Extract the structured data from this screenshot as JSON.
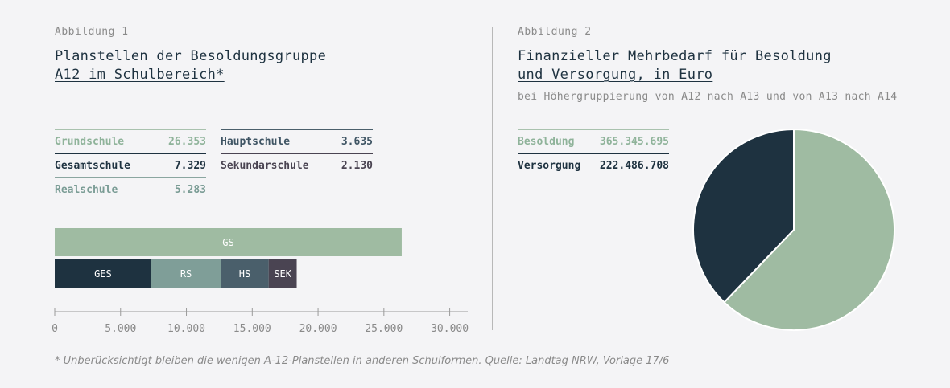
{
  "fig1": {
    "label": "Abbildung 1",
    "title_line1": "Planstellen der Besoldungsgruppe",
    "title_line2": "A12 im Schulbereich*",
    "legend_left": [
      {
        "label": "Grundschule",
        "value": "26.353",
        "color": "#8fb39a"
      },
      {
        "label": "Gesamtschule",
        "value": "7.329",
        "color": "#1e3240"
      },
      {
        "label": "Realschule",
        "value": "5.283",
        "color": "#7a9c95"
      }
    ],
    "legend_right": [
      {
        "label": "Hauptschule",
        "value": "3.635",
        "color": "#3f5564"
      },
      {
        "label": "Sekundarschule",
        "value": "2.130",
        "color": "#4a4452"
      }
    ]
  },
  "fig2": {
    "label": "Abbildung 2",
    "title_line1": "Finanzieller Mehrbedarf für Besoldung",
    "title_line2": "und Versorgung, in Euro",
    "subtitle": "bei Höhergruppierung von A12 nach A13 und von A13 nach A14",
    "legend": [
      {
        "label": "Besoldung",
        "value": "365.345.695",
        "color": "#8fb39a"
      },
      {
        "label": "Versorgung",
        "value": "222.486.708",
        "color": "#1e3240"
      }
    ]
  },
  "footnote": "* Unberücksichtigt bleiben die wenigen A-12-Planstellen in anderen Schulformen. Quelle: Landtag NRW, Vorlage 17/6",
  "chart_data": [
    {
      "type": "bar",
      "orientation": "horizontal",
      "stacked": true,
      "rows": [
        {
          "segments": [
            {
              "label": "GS",
              "value": 26353,
              "color": "#9fbba2"
            }
          ]
        },
        {
          "segments": [
            {
              "label": "GES",
              "value": 7329,
              "color": "#1e3240"
            },
            {
              "label": "RS",
              "value": 5283,
              "color": "#7f9e98"
            },
            {
              "label": "HS",
              "value": 3635,
              "color": "#4a5f6b"
            },
            {
              "label": "SEK",
              "value": 2130,
              "color": "#4a4452"
            }
          ]
        }
      ],
      "xlim": [
        0,
        31000
      ],
      "xticks": [
        0,
        5000,
        10000,
        15000,
        20000,
        25000,
        30000
      ],
      "xtick_labels": [
        "0",
        "5.000",
        "10.000",
        "15.000",
        "20.000",
        "25.000",
        "30.000"
      ]
    },
    {
      "type": "pie",
      "slices": [
        {
          "label": "Besoldung",
          "value": 365345695,
          "color": "#9fbba2"
        },
        {
          "label": "Versorgung",
          "value": 222486708,
          "color": "#1e3240"
        }
      ]
    }
  ]
}
